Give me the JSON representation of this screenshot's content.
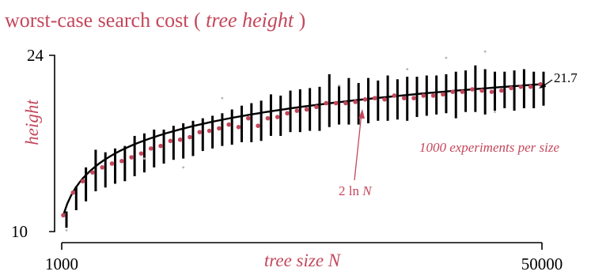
{
  "chart_data": {
    "type": "scatter",
    "title": "worst-case search cost",
    "subtitle": "tree height",
    "ylabel": "height",
    "xlabel": "tree size",
    "xlabel_var": "N",
    "x_ticks": [
      "1000",
      "50000"
    ],
    "y_ticks": [
      "24",
      "10"
    ],
    "xlim": [
      1000,
      50000
    ],
    "ylim": [
      10,
      24
    ],
    "grid": false,
    "annotations": {
      "experiments": "1000 experiments per size",
      "curve_label_prefix": "2 ln",
      "curve_label_var": "N",
      "end_value": "21.7"
    },
    "series": [
      {
        "x": [
          1000,
          2000,
          3000,
          4000,
          5000,
          6000,
          7000,
          8000,
          9000,
          10000,
          11000,
          12000,
          13000,
          14000,
          15000,
          16000,
          17000,
          18000,
          19000,
          20000,
          21000,
          22000,
          23000,
          24000,
          25000,
          26000,
          27000,
          28000,
          29000,
          30000,
          31000,
          32000,
          33000,
          34000,
          35000,
          36000,
          37000,
          38000,
          39000,
          40000,
          41000,
          42000,
          43000,
          44000,
          45000,
          46000,
          47000,
          48000,
          49000,
          50000
        ],
        "mean": [
          11.3,
          13.1,
          14.0,
          14.7,
          15.1,
          15.4,
          15.6,
          15.9,
          16.2,
          16.6,
          16.8,
          17.2,
          17.3,
          17.5,
          17.9,
          18.0,
          18.2,
          18.5,
          18.3,
          19.0,
          18.4,
          19.0,
          19.1,
          19.4,
          19.6,
          19.7,
          19.9,
          20.2,
          20.2,
          20.2,
          20.3,
          20.5,
          20.6,
          20.5,
          20.8,
          20.6,
          20.6,
          20.8,
          20.8,
          20.9,
          21.1,
          21.1,
          21.3,
          21.2,
          21.1,
          21.2,
          21.4,
          21.5,
          21.5,
          21.7
        ],
        "min": [
          10.3,
          11.7,
          12.4,
          13.2,
          13.5,
          13.8,
          14.0,
          14.4,
          14.7,
          15.1,
          15.4,
          15.7,
          15.8,
          16.0,
          16.4,
          16.6,
          16.8,
          16.9,
          17.1,
          17.1,
          17.2,
          17.6,
          17.6,
          17.9,
          17.9,
          18.0,
          18.0,
          18.3,
          18.5,
          18.5,
          18.5,
          18.6,
          18.8,
          18.8,
          18.9,
          18.8,
          19.1,
          19.2,
          19.3,
          19.4,
          19.0,
          19.5,
          19.5,
          19.3,
          19.6,
          19.8,
          19.6,
          19.8,
          19.8,
          20.0
        ],
        "max": [
          11.6,
          13.6,
          15.1,
          16.5,
          16.3,
          16.6,
          16.8,
          17.6,
          17.8,
          18.1,
          18.1,
          18.4,
          18.6,
          18.8,
          19.0,
          19.2,
          19.4,
          19.7,
          20.0,
          20.2,
          20.4,
          20.9,
          20.8,
          21.2,
          21.3,
          21.4,
          21.5,
          22.5,
          21.6,
          22.2,
          21.8,
          22.2,
          22.0,
          22.4,
          22.1,
          22.3,
          22.3,
          22.4,
          22.4,
          22.5,
          22.7,
          22.8,
          23.2,
          22.9,
          22.7,
          22.7,
          22.8,
          22.9,
          22.7,
          22.7
        ],
        "outliers": [
          [
            1000,
            10.1
          ],
          [
            9000,
            15.8
          ],
          [
            13000,
            15.1
          ],
          [
            17000,
            20.6
          ],
          [
            29000,
            21.6
          ],
          [
            36000,
            22.9
          ],
          [
            40000,
            23.8
          ],
          [
            44000,
            24.3
          ],
          [
            45000,
            19.5
          ]
        ]
      }
    ]
  }
}
